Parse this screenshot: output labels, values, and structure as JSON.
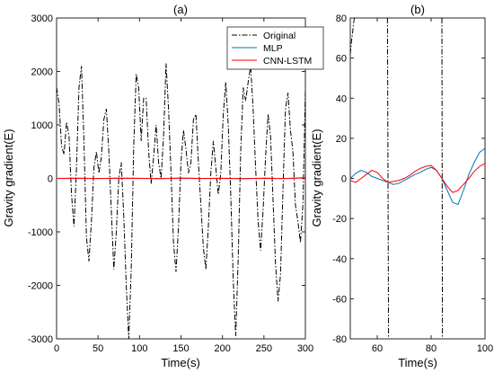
{
  "chart_data": [
    {
      "type": "line",
      "title": "(a)",
      "xlabel": "Time(s)",
      "ylabel": "Gravity gradient(E)",
      "xlim": [
        0,
        300
      ],
      "ylim": [
        -3000,
        3000
      ],
      "xticks": [
        0,
        50,
        100,
        150,
        200,
        250,
        300
      ],
      "yticks": [
        -3000,
        -2000,
        -1000,
        0,
        1000,
        2000,
        3000
      ],
      "grid": false,
      "legend": "top-right",
      "series": [
        {
          "name": "Original",
          "color": "#000000",
          "style": "dashdot",
          "x": [
            0,
            3,
            6,
            9,
            12,
            15,
            18,
            21,
            24,
            27,
            30,
            33,
            36,
            39,
            42,
            45,
            48,
            51,
            54,
            57,
            60,
            63,
            66,
            69,
            72,
            75,
            78,
            81,
            84,
            87,
            90,
            93,
            96,
            99,
            102,
            105,
            108,
            111,
            114,
            117,
            120,
            123,
            126,
            129,
            132,
            135,
            138,
            141,
            144,
            147,
            150,
            153,
            156,
            159,
            162,
            165,
            168,
            171,
            174,
            177,
            180,
            183,
            186,
            189,
            192,
            195,
            198,
            201,
            204,
            207,
            210,
            213,
            216,
            219,
            222,
            225,
            228,
            231,
            234,
            237,
            240,
            243,
            246,
            249,
            252,
            255,
            258,
            261,
            264,
            267,
            270,
            273,
            276,
            279,
            282,
            285,
            288,
            291,
            294,
            297,
            300
          ],
          "y": [
            1700,
            1400,
            600,
            450,
            1050,
            800,
            -300,
            -900,
            200,
            1700,
            2100,
            700,
            -1100,
            -1550,
            -800,
            200,
            500,
            100,
            400,
            1100,
            1300,
            500,
            -600,
            -1700,
            -1000,
            0,
            300,
            -700,
            -2000,
            -3000,
            -1700,
            600,
            1950,
            1700,
            700,
            1500,
            1500,
            500,
            -100,
            400,
            1000,
            300,
            0,
            800,
            2150,
            1300,
            100,
            -1200,
            -1750,
            -900,
            300,
            900,
            550,
            100,
            300,
            1100,
            1200,
            300,
            -500,
            -1300,
            -1700,
            -900,
            100,
            700,
            200,
            -300,
            100,
            1200,
            1800,
            1000,
            -300,
            -1900,
            -2950,
            -1500,
            500,
            1700,
            1450,
            1800,
            2100,
            1300,
            200,
            -800,
            -1350,
            -600,
            400,
            1200,
            800,
            -400,
            -1600,
            -2300,
            -1800,
            -200,
            1300,
            1600,
            900,
            500,
            -500,
            -800,
            -1200,
            -500,
            1650
          ],
          "marks_shown_beyond_axes": "clipped"
        },
        {
          "name": "MLP",
          "color": "#0072BD",
          "style": "solid",
          "x": [
            0,
            25,
            50,
            75,
            100,
            125,
            150,
            175,
            200,
            225,
            250,
            275,
            300
          ],
          "y": [
            0,
            4,
            -3,
            5,
            2,
            -4,
            6,
            -2,
            3,
            -5,
            4,
            -3,
            15
          ]
        },
        {
          "name": "CNN-LSTM",
          "color": "#FF0000",
          "style": "solid",
          "x": [
            0,
            25,
            50,
            75,
            100,
            125,
            150,
            175,
            200,
            225,
            250,
            275,
            300
          ],
          "y": [
            0,
            3,
            -2,
            4,
            1,
            -3,
            5,
            -1,
            2,
            -4,
            3,
            -2,
            8
          ]
        }
      ]
    },
    {
      "type": "line",
      "title": "(b)",
      "xlabel": "Time(s)",
      "ylabel": "Gravity gradient(E)",
      "xlim": [
        50,
        100
      ],
      "ylim": [
        -80,
        80
      ],
      "xticks": [
        60,
        80,
        100
      ],
      "yticks": [
        -80,
        -60,
        -40,
        -20,
        0,
        20,
        40,
        60,
        80
      ],
      "grid": false,
      "series": [
        {
          "name": "Original",
          "color": "#000000",
          "style": "dashdot",
          "segments": [
            {
              "x": [
                50,
                50.4,
                50.8,
                51.2,
                51.5
              ],
              "y": [
                62,
                68,
                72,
                77,
                80
              ]
            },
            {
              "x": [
                63.8,
                64.0,
                64.2
              ],
              "y": [
                80,
                0,
                -80
              ]
            },
            {
              "x": [
                84.0,
                84.1,
                84.2
              ],
              "y": [
                80,
                0,
                -80
              ]
            }
          ]
        },
        {
          "name": "MLP",
          "color": "#0072BD",
          "style": "solid",
          "x": [
            50,
            52,
            54,
            56,
            58,
            60,
            62,
            64,
            66,
            68,
            70,
            72,
            74,
            76,
            78,
            80,
            82,
            84,
            86,
            88,
            90,
            92,
            94,
            96,
            98,
            100
          ],
          "y": [
            0,
            2.5,
            4,
            3,
            1,
            0,
            -1,
            -2,
            -3,
            -2.5,
            -1,
            0.5,
            2,
            3,
            4.5,
            5.5,
            4,
            0,
            -6,
            -12,
            -13,
            -6,
            2,
            8,
            13,
            15
          ]
        },
        {
          "name": "CNN-LSTM",
          "color": "#FF0000",
          "style": "solid",
          "x": [
            50,
            52,
            54,
            56,
            58,
            60,
            62,
            64,
            66,
            68,
            70,
            72,
            74,
            76,
            78,
            80,
            82,
            84,
            86,
            88,
            90,
            92,
            94,
            96,
            98,
            100
          ],
          "y": [
            -1,
            -2,
            0,
            2,
            4,
            3,
            0,
            -2,
            -1.5,
            -1,
            0,
            1.5,
            3.5,
            5,
            6,
            6.5,
            4,
            0,
            -4,
            -7,
            -6,
            -3,
            0,
            3.5,
            6,
            7.5
          ]
        }
      ]
    }
  ]
}
